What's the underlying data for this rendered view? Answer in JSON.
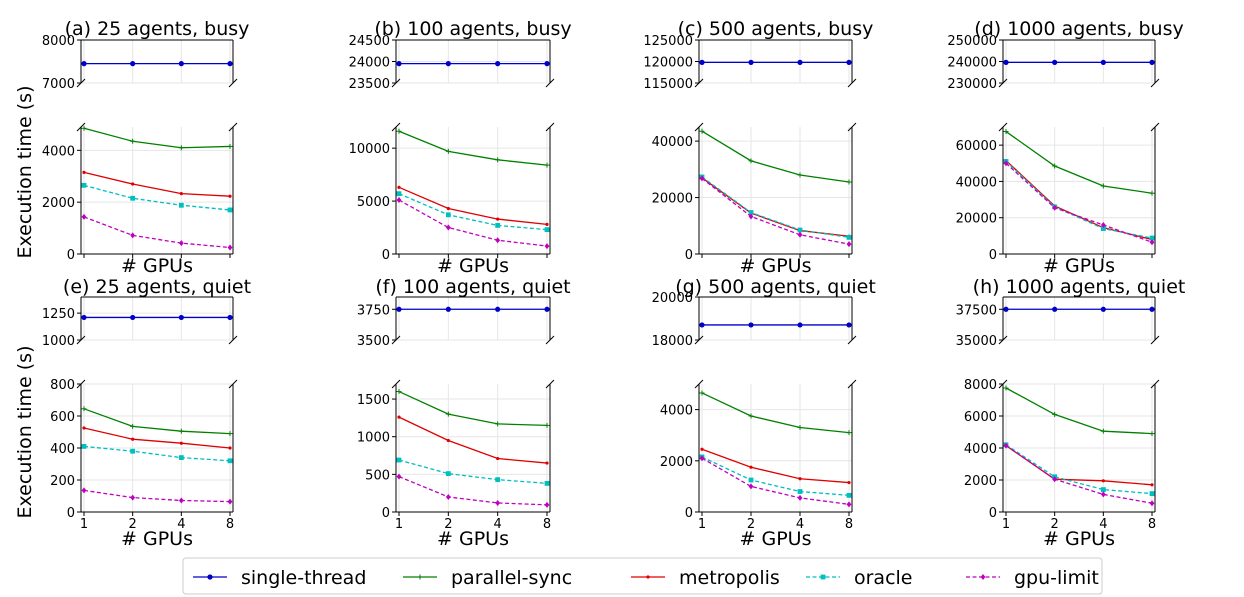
{
  "chart_data": {
    "type": "line",
    "ylabel": "Execution time (s)",
    "xlabel": "# GPUs",
    "x": [
      "1",
      "2",
      "4",
      "8"
    ],
    "legend": {
      "position": "bottom-center",
      "entries": [
        {
          "name": "single-thread",
          "color": "#0000cc",
          "marker": "circle",
          "dash": "solid"
        },
        {
          "name": "parallel-sync",
          "color": "#008000",
          "marker": "plus",
          "dash": "solid"
        },
        {
          "name": "metropolis",
          "color": "#e00000",
          "marker": "dot",
          "dash": "solid"
        },
        {
          "name": "oracle",
          "color": "#00bfbf",
          "marker": "square",
          "dash": "dashed"
        },
        {
          "name": "gpu-limit",
          "color": "#bf00bf",
          "marker": "diamond",
          "dash": "dashed"
        }
      ]
    },
    "panels": [
      {
        "title": "(a) 25 agents, busy",
        "upper": {
          "ylim": [
            7000,
            8000
          ],
          "ticks": [
            "7000",
            "8000"
          ],
          "tickvals": [
            7000,
            8000
          ]
        },
        "lower": {
          "ylim": [
            0,
            4900
          ],
          "ticks": [
            "0",
            "2000",
            "4000"
          ],
          "tickvals": [
            0,
            2000,
            4000
          ]
        },
        "series": {
          "single-thread": [
            7450,
            7450,
            7450,
            7450
          ],
          "parallel-sync": [
            4850,
            4350,
            4100,
            4150
          ],
          "metropolis": [
            3150,
            2700,
            2330,
            2230
          ],
          "oracle": [
            2650,
            2150,
            1880,
            1700
          ],
          "gpu-limit": [
            1430,
            720,
            420,
            250
          ]
        }
      },
      {
        "title": "(b) 100 agents, busy",
        "upper": {
          "ylim": [
            23500,
            24500
          ],
          "ticks": [
            "23500",
            "24000",
            "24500"
          ],
          "tickvals": [
            23500,
            24000,
            24500
          ]
        },
        "lower": {
          "ylim": [
            0,
            12000
          ],
          "ticks": [
            "0",
            "5000",
            "10000"
          ],
          "tickvals": [
            0,
            5000,
            10000
          ]
        },
        "series": {
          "single-thread": [
            23950,
            23950,
            23950,
            23950
          ],
          "parallel-sync": [
            11600,
            9700,
            8900,
            8400
          ],
          "metropolis": [
            6300,
            4300,
            3300,
            2800
          ],
          "oracle": [
            5700,
            3700,
            2700,
            2300
          ],
          "gpu-limit": [
            5100,
            2500,
            1300,
            750
          ]
        }
      },
      {
        "title": "(c) 500 agents, busy",
        "upper": {
          "ylim": [
            115000,
            125000
          ],
          "ticks": [
            "115000",
            "120000",
            "125000"
          ],
          "tickvals": [
            115000,
            120000,
            125000
          ]
        },
        "lower": {
          "ylim": [
            0,
            45000
          ],
          "ticks": [
            "0",
            "20000",
            "40000"
          ],
          "tickvals": [
            0,
            20000,
            40000
          ]
        },
        "series": {
          "single-thread": [
            119800,
            119800,
            119800,
            119800
          ],
          "parallel-sync": [
            43500,
            33000,
            28000,
            25500
          ],
          "metropolis": [
            27000,
            14500,
            8300,
            6300
          ],
          "oracle": [
            27300,
            14700,
            8500,
            5900
          ],
          "gpu-limit": [
            26800,
            13300,
            6800,
            3500
          ]
        }
      },
      {
        "title": "(d) 1000 agents, busy",
        "upper": {
          "ylim": [
            230000,
            250000
          ],
          "ticks": [
            "230000",
            "240000",
            "250000"
          ],
          "tickvals": [
            230000,
            240000,
            250000
          ]
        },
        "lower": {
          "ylim": [
            0,
            70000
          ],
          "ticks": [
            "0",
            "20000",
            "40000",
            "60000"
          ],
          "tickvals": [
            0,
            20000,
            40000,
            60000
          ]
        },
        "series": {
          "single-thread": [
            239600,
            239600,
            239600,
            239600
          ],
          "parallel-sync": [
            67500,
            48500,
            37500,
            33500
          ],
          "metropolis": [
            51500,
            26500,
            14500,
            8000
          ],
          "oracle": [
            51000,
            26000,
            14000,
            8800
          ],
          "gpu-limit": [
            50000,
            25500,
            16000,
            6500
          ]
        }
      },
      {
        "title": "(e) 25 agents, quiet",
        "upper": {
          "ylim": [
            1000,
            1400
          ],
          "ticks": [
            "1000",
            "1250"
          ],
          "tickvals": [
            1000,
            1250
          ]
        },
        "lower": {
          "ylim": [
            0,
            800
          ],
          "ticks": [
            "0",
            "200",
            "400",
            "600",
            "800"
          ],
          "tickvals": [
            0,
            200,
            400,
            600,
            800
          ]
        },
        "series": {
          "single-thread": [
            1210,
            1210,
            1210,
            1210
          ],
          "parallel-sync": [
            645,
            535,
            505,
            490
          ],
          "metropolis": [
            525,
            455,
            430,
            400
          ],
          "oracle": [
            410,
            380,
            340,
            320
          ],
          "gpu-limit": [
            135,
            90,
            72,
            65
          ]
        }
      },
      {
        "title": "(f) 100 agents, quiet",
        "upper": {
          "ylim": [
            3500,
            3850
          ],
          "ticks": [
            "3500",
            "3750"
          ],
          "tickvals": [
            3500,
            3750
          ]
        },
        "lower": {
          "ylim": [
            0,
            1700
          ],
          "ticks": [
            "0",
            "500",
            "1000",
            "1500"
          ],
          "tickvals": [
            0,
            500,
            1000,
            1500
          ]
        },
        "series": {
          "single-thread": [
            3750,
            3750,
            3750,
            3750
          ],
          "parallel-sync": [
            1600,
            1300,
            1170,
            1150
          ],
          "metropolis": [
            1260,
            950,
            710,
            650
          ],
          "oracle": [
            690,
            510,
            430,
            380
          ],
          "gpu-limit": [
            470,
            200,
            120,
            95
          ]
        }
      },
      {
        "title": "(g) 500 agents, quiet",
        "upper": {
          "ylim": [
            18000,
            20000
          ],
          "ticks": [
            "18000",
            "20000"
          ],
          "tickvals": [
            18000,
            20000
          ]
        },
        "lower": {
          "ylim": [
            0,
            5000
          ],
          "ticks": [
            "0",
            "2000",
            "4000"
          ],
          "tickvals": [
            0,
            2000,
            4000
          ]
        },
        "series": {
          "single-thread": [
            18700,
            18700,
            18700,
            18700
          ],
          "parallel-sync": [
            4650,
            3750,
            3300,
            3100
          ],
          "metropolis": [
            2450,
            1750,
            1300,
            1150
          ],
          "oracle": [
            2150,
            1250,
            800,
            650
          ],
          "gpu-limit": [
            2100,
            1000,
            550,
            300
          ]
        }
      },
      {
        "title": "(h) 1000 agents, quiet",
        "upper": {
          "ylim": [
            35000,
            38500
          ],
          "ticks": [
            "35000",
            "37500"
          ],
          "tickvals": [
            35000,
            37500
          ]
        },
        "lower": {
          "ylim": [
            0,
            8000
          ],
          "ticks": [
            "0",
            "2000",
            "4000",
            "6000",
            "8000"
          ],
          "tickvals": [
            0,
            2000,
            4000,
            6000,
            8000
          ]
        },
        "series": {
          "single-thread": [
            37500,
            37500,
            37500,
            37500
          ],
          "parallel-sync": [
            7750,
            6100,
            5050,
            4900
          ],
          "metropolis": [
            4150,
            2050,
            1950,
            1700
          ],
          "oracle": [
            4200,
            2200,
            1400,
            1150
          ],
          "gpu-limit": [
            4150,
            2050,
            1100,
            550
          ]
        }
      }
    ]
  }
}
